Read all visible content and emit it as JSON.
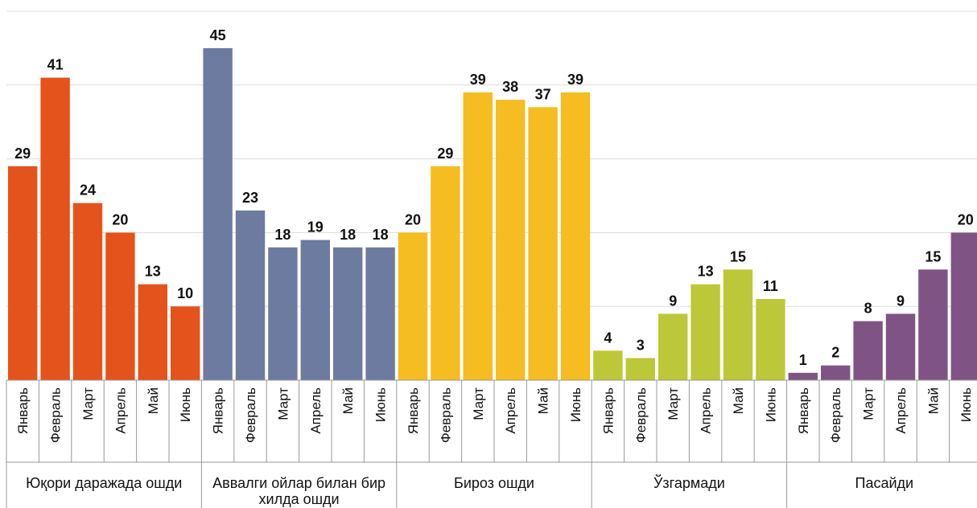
{
  "chart_data": {
    "type": "bar",
    "categories": [
      "Январь",
      "Февраль",
      "Март",
      "Апрель",
      "Май",
      "Июнь"
    ],
    "series": [
      {
        "name": "Юқори даражада ошди",
        "color": "#e4531b",
        "values": [
          29,
          41,
          24,
          20,
          13,
          10
        ]
      },
      {
        "name": "Аввалги ойлар билан бир хилда ошди",
        "color": "#6e7ba0",
        "values": [
          45,
          23,
          18,
          19,
          18,
          18
        ]
      },
      {
        "name": "Бироз ошди",
        "color": "#f5bd21",
        "values": [
          20,
          29,
          39,
          38,
          37,
          39
        ]
      },
      {
        "name": "Ўзгармади",
        "color": "#bdc838",
        "values": [
          4,
          3,
          9,
          13,
          15,
          11
        ]
      },
      {
        "name": "Пасайди",
        "color": "#7f5484",
        "values": [
          1,
          2,
          8,
          9,
          15,
          20
        ]
      }
    ],
    "ylim": [
      0,
      50
    ],
    "yticks": [
      0,
      10,
      20,
      30,
      40,
      50
    ],
    "grid": true
  }
}
